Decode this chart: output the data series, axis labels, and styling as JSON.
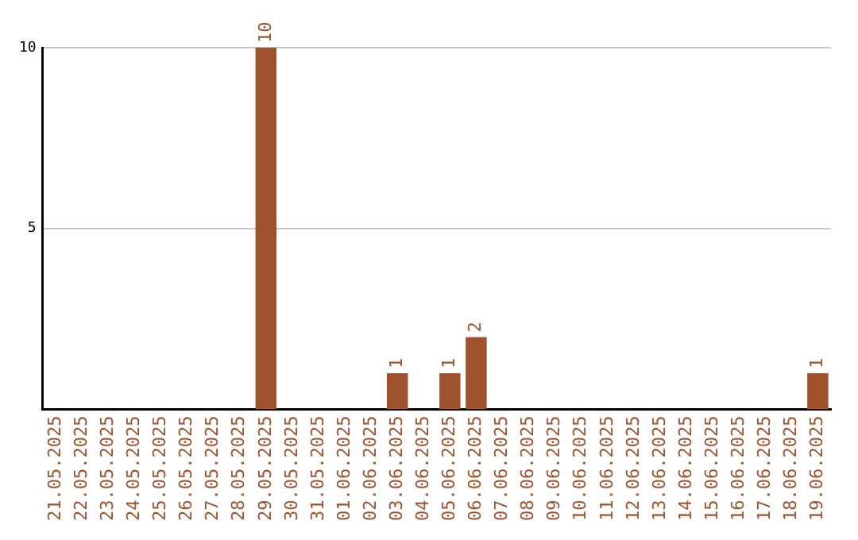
{
  "chart_data": {
    "type": "bar",
    "categories": [
      "21.05.2025",
      "22.05.2025",
      "23.05.2025",
      "24.05.2025",
      "25.05.2025",
      "26.05.2025",
      "27.05.2025",
      "28.05.2025",
      "29.05.2025",
      "30.05.2025",
      "31.05.2025",
      "01.06.2025",
      "02.06.2025",
      "03.06.2025",
      "04.06.2025",
      "05.06.2025",
      "06.06.2025",
      "07.06.2025",
      "08.06.2025",
      "09.06.2025",
      "10.06.2025",
      "11.06.2025",
      "12.06.2025",
      "13.06.2025",
      "14.06.2025",
      "15.06.2025",
      "16.06.2025",
      "17.06.2025",
      "18.06.2025",
      "19.06.2025"
    ],
    "values": [
      0,
      0,
      0,
      0,
      0,
      0,
      0,
      0,
      10,
      0,
      0,
      0,
      0,
      1,
      0,
      1,
      2,
      0,
      0,
      0,
      0,
      0,
      0,
      0,
      0,
      0,
      0,
      0,
      0,
      1
    ],
    "value_labels": [
      null,
      null,
      null,
      null,
      null,
      null,
      null,
      null,
      "10",
      null,
      null,
      null,
      null,
      "1",
      null,
      "1",
      "2",
      null,
      null,
      null,
      null,
      null,
      null,
      null,
      null,
      null,
      null,
      null,
      null,
      "1"
    ],
    "color": "#a0522d",
    "ylim": [
      0,
      10
    ],
    "yticks": [
      5,
      10
    ],
    "grid": "y",
    "legend": false
  }
}
